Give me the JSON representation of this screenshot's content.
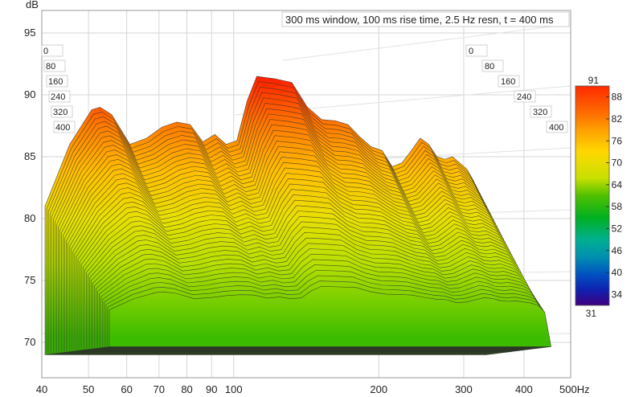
{
  "chart_data": {
    "type": "waterfall",
    "title": "300 ms window, 100 ms rise time,  2.5 Hz resn, t = 400 ms",
    "y_unit": "dB",
    "x_unit": "Hz",
    "x_scale": "log",
    "xlim": [
      40,
      500
    ],
    "ylim": [
      67,
      97
    ],
    "x_ticks": [
      "40",
      "50",
      "60",
      "70",
      "80",
      "90",
      "100",
      "200",
      "300",
      "400",
      "500Hz"
    ],
    "x_tick_values": [
      40,
      50,
      60,
      70,
      80,
      90,
      100,
      200,
      300,
      400,
      500
    ],
    "y_ticks": [
      "70",
      "75",
      "80",
      "85",
      "90",
      "95"
    ],
    "y_tick_values": [
      70,
      75,
      80,
      85,
      90,
      95
    ],
    "time_ticks": [
      "0",
      "80",
      "160",
      "240",
      "320",
      "400"
    ],
    "time_values_ms": [
      0,
      80,
      160,
      240,
      320,
      400
    ],
    "front_slice": {
      "time_ms": 0,
      "x": [
        40,
        45,
        50,
        52,
        55,
        60,
        65,
        70,
        75,
        80,
        85,
        90,
        95,
        100,
        105,
        110,
        120,
        130,
        140,
        150,
        160,
        170,
        180,
        190,
        200,
        210,
        220,
        230,
        240,
        250,
        260,
        270,
        280,
        290,
        300,
        310,
        320
      ],
      "y": [
        81.0,
        86.0,
        88.8,
        89.0,
        88.4,
        86.0,
        86.5,
        87.4,
        87.8,
        87.6,
        86.2,
        86.8,
        86.0,
        86.3,
        89.5,
        91.5,
        91.3,
        91.0,
        89.0,
        88.0,
        87.9,
        87.6,
        86.6,
        85.8,
        85.5,
        84.2,
        84.5,
        85.5,
        86.5,
        86.0,
        85.0,
        84.8,
        85.0,
        84.5,
        84.0,
        83.0,
        80.0
      ]
    },
    "floor_level": 70,
    "num_slices": 40,
    "colorbar": {
      "min": 31,
      "max": 91,
      "ticks": [
        "91",
        "88",
        "82",
        "76",
        "70",
        "64",
        "58",
        "52",
        "46",
        "40",
        "34",
        "31"
      ],
      "tick_values": [
        91,
        88,
        82,
        76,
        70,
        64,
        58,
        52,
        46,
        40,
        34,
        31
      ]
    }
  },
  "axis_labels": {
    "y_unit": "dB",
    "title": "300 ms window, 100 ms rise time,  2.5 Hz resn, t = 400 ms"
  }
}
